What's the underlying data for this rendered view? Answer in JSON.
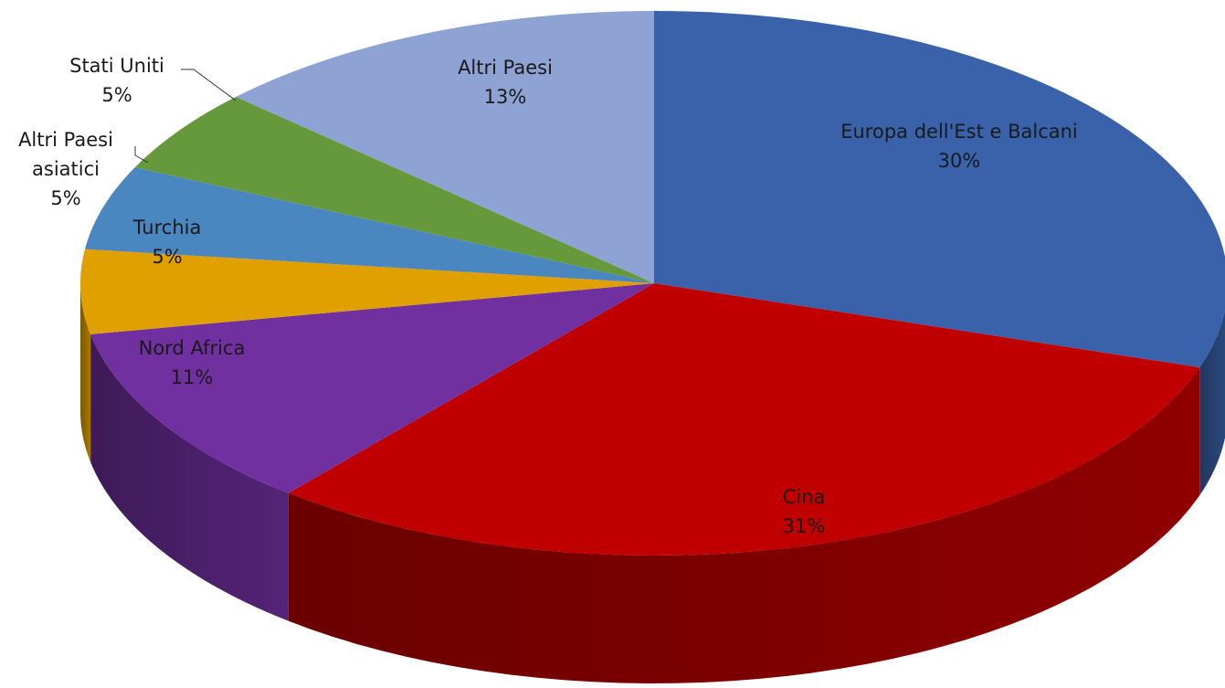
{
  "chart_data": {
    "type": "pie3d",
    "categories": [
      "Europa dell'Est e Balcani",
      "Cina",
      "Nord Africa",
      "Turchia",
      "Altri Paesi asiatici",
      "Stati Uniti",
      "Altri Paesi"
    ],
    "values": [
      30,
      31,
      11,
      5,
      5,
      5,
      13
    ],
    "value_labels": [
      "30%",
      "31%",
      "11%",
      "5%",
      "5%",
      "5%",
      "13%"
    ],
    "colors": [
      "#3a62aa",
      "#c00000",
      "#7030a0",
      "#e0a000",
      "#4a86c0",
      "#66993c",
      "#8ea2d4"
    ]
  }
}
